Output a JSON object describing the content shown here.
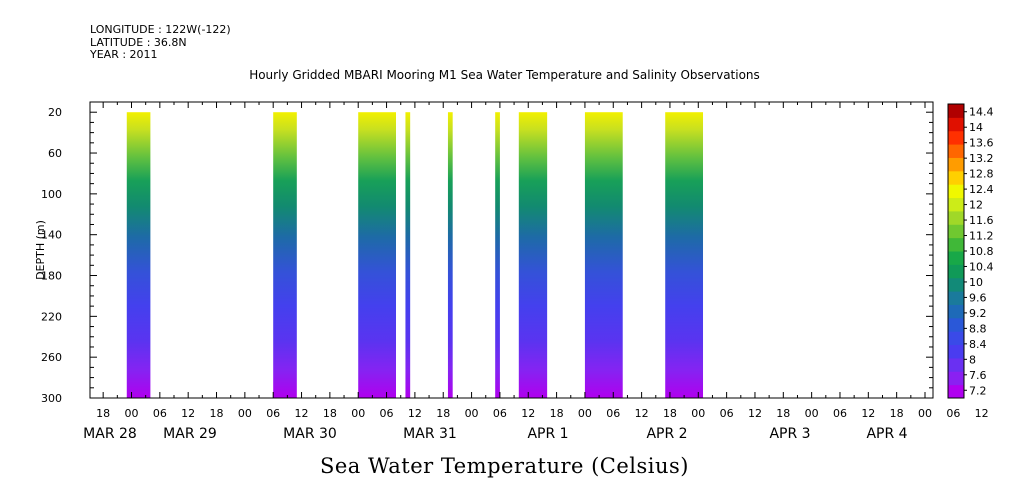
{
  "meta": {
    "longitude": "LONGITUDE : 122W(-122)",
    "latitude": "LATITUDE : 36.8N",
    "year": "YEAR : 2011"
  },
  "chart_data": {
    "type": "heatmap",
    "title": "Hourly Gridded MBARI Mooring M1 Sea Water Temperature and Salinity Observations",
    "ylabel": "DEPTH (m)",
    "footer_label": "Sea Water Temperature (Celsius)",
    "y_ticks": [
      20,
      60,
      100,
      140,
      180,
      220,
      260,
      300
    ],
    "ylim": [
      300,
      10
    ],
    "x_hour_ticks": [
      "18",
      "00",
      "06",
      "12",
      "18",
      "00",
      "06",
      "12",
      "18",
      "00",
      "06",
      "12",
      "18",
      "00",
      "06",
      "12",
      "18",
      "00",
      "06",
      "12",
      "18",
      "00",
      "06",
      "12",
      "18",
      "00",
      "06",
      "12",
      "18",
      "00",
      "06",
      "12"
    ],
    "x_date_labels": [
      "MAR 28",
      "MAR 29",
      "MAR 30",
      "MAR 31",
      "APR  1",
      "APR  2",
      "APR  3",
      "APR  4"
    ],
    "data_segments_hours_from_mar28_00": [
      [
        -1,
        4
      ],
      [
        30,
        35
      ],
      [
        48,
        56
      ],
      [
        58,
        59
      ],
      [
        67,
        68
      ],
      [
        77,
        78
      ],
      [
        82,
        88
      ],
      [
        96,
        104
      ],
      [
        113,
        121
      ]
    ],
    "colorbar": {
      "levels": [
        7.2,
        7.6,
        8,
        8.4,
        8.8,
        9.2,
        9.6,
        10,
        10.4,
        10.8,
        11.2,
        11.6,
        12,
        12.4,
        12.8,
        13.2,
        13.6,
        14,
        14.4
      ],
      "colors": [
        "#b000f0",
        "#8a20f2",
        "#6a30f2",
        "#4a3cf0",
        "#3a4ae8",
        "#2a58d8",
        "#1e6ab8",
        "#1a7a9c",
        "#128a78",
        "#109a58",
        "#18a848",
        "#40b838",
        "#70c830",
        "#a0d828",
        "#ccec18",
        "#f0f800",
        "#ffd000",
        "#ff9c00",
        "#ff6600",
        "#ff3000",
        "#e01000",
        "#b00000"
      ]
    }
  }
}
